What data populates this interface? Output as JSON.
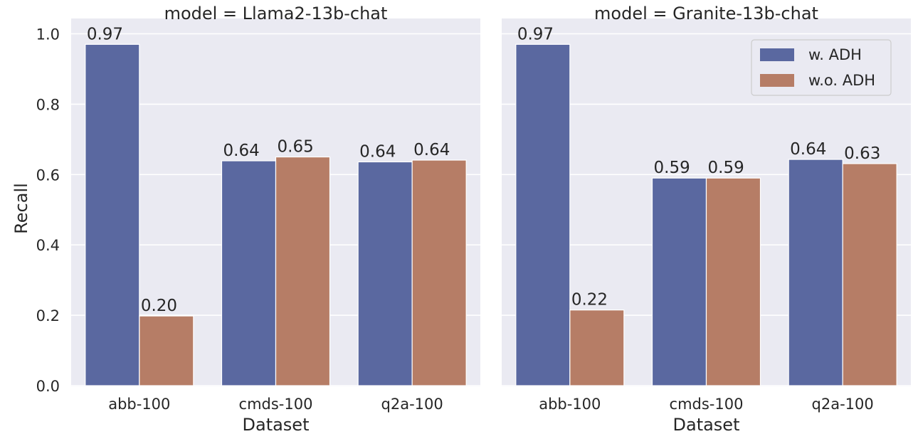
{
  "chart_data": {
    "type": "bar",
    "y_axis": {
      "label": "Recall",
      "ylim": [
        0,
        1.0
      ],
      "ticks": [
        0.0,
        0.2,
        0.4,
        0.6,
        0.8,
        1.0
      ],
      "tick_labels": [
        "0.0",
        "0.2",
        "0.4",
        "0.6",
        "0.8",
        "1.0"
      ]
    },
    "grid": true,
    "legend": {
      "placement": "top-right",
      "panel": 1,
      "entries": [
        {
          "name": "w. ADH",
          "color": "#5a68a0"
        },
        {
          "name": "w.o. ADH",
          "color": "#b67d66"
        }
      ]
    },
    "panels": [
      {
        "title": "model = Llama2-13b-chat",
        "xlabel": "Dataset",
        "categories": [
          "abb-100",
          "cmds-100",
          "q2a-100"
        ],
        "series": [
          {
            "name": "w. ADH",
            "values": [
              0.97,
              0.639,
              0.636
            ],
            "labels": [
              "0.97",
              "0.64",
              "0.64"
            ]
          },
          {
            "name": "w.o. ADH",
            "values": [
              0.198,
              0.65,
              0.641
            ],
            "labels": [
              "0.20",
              "0.65",
              "0.64"
            ]
          }
        ]
      },
      {
        "title": "model = Granite-13b-chat",
        "xlabel": "Dataset",
        "categories": [
          "abb-100",
          "cmds-100",
          "q2a-100"
        ],
        "series": [
          {
            "name": "w. ADH",
            "values": [
              0.97,
              0.59,
              0.643
            ],
            "labels": [
              "0.97",
              "0.59",
              "0.64"
            ]
          },
          {
            "name": "w.o. ADH",
            "values": [
              0.215,
              0.59,
              0.631
            ],
            "labels": [
              "0.22",
              "0.59",
              "0.63"
            ]
          }
        ]
      }
    ]
  }
}
